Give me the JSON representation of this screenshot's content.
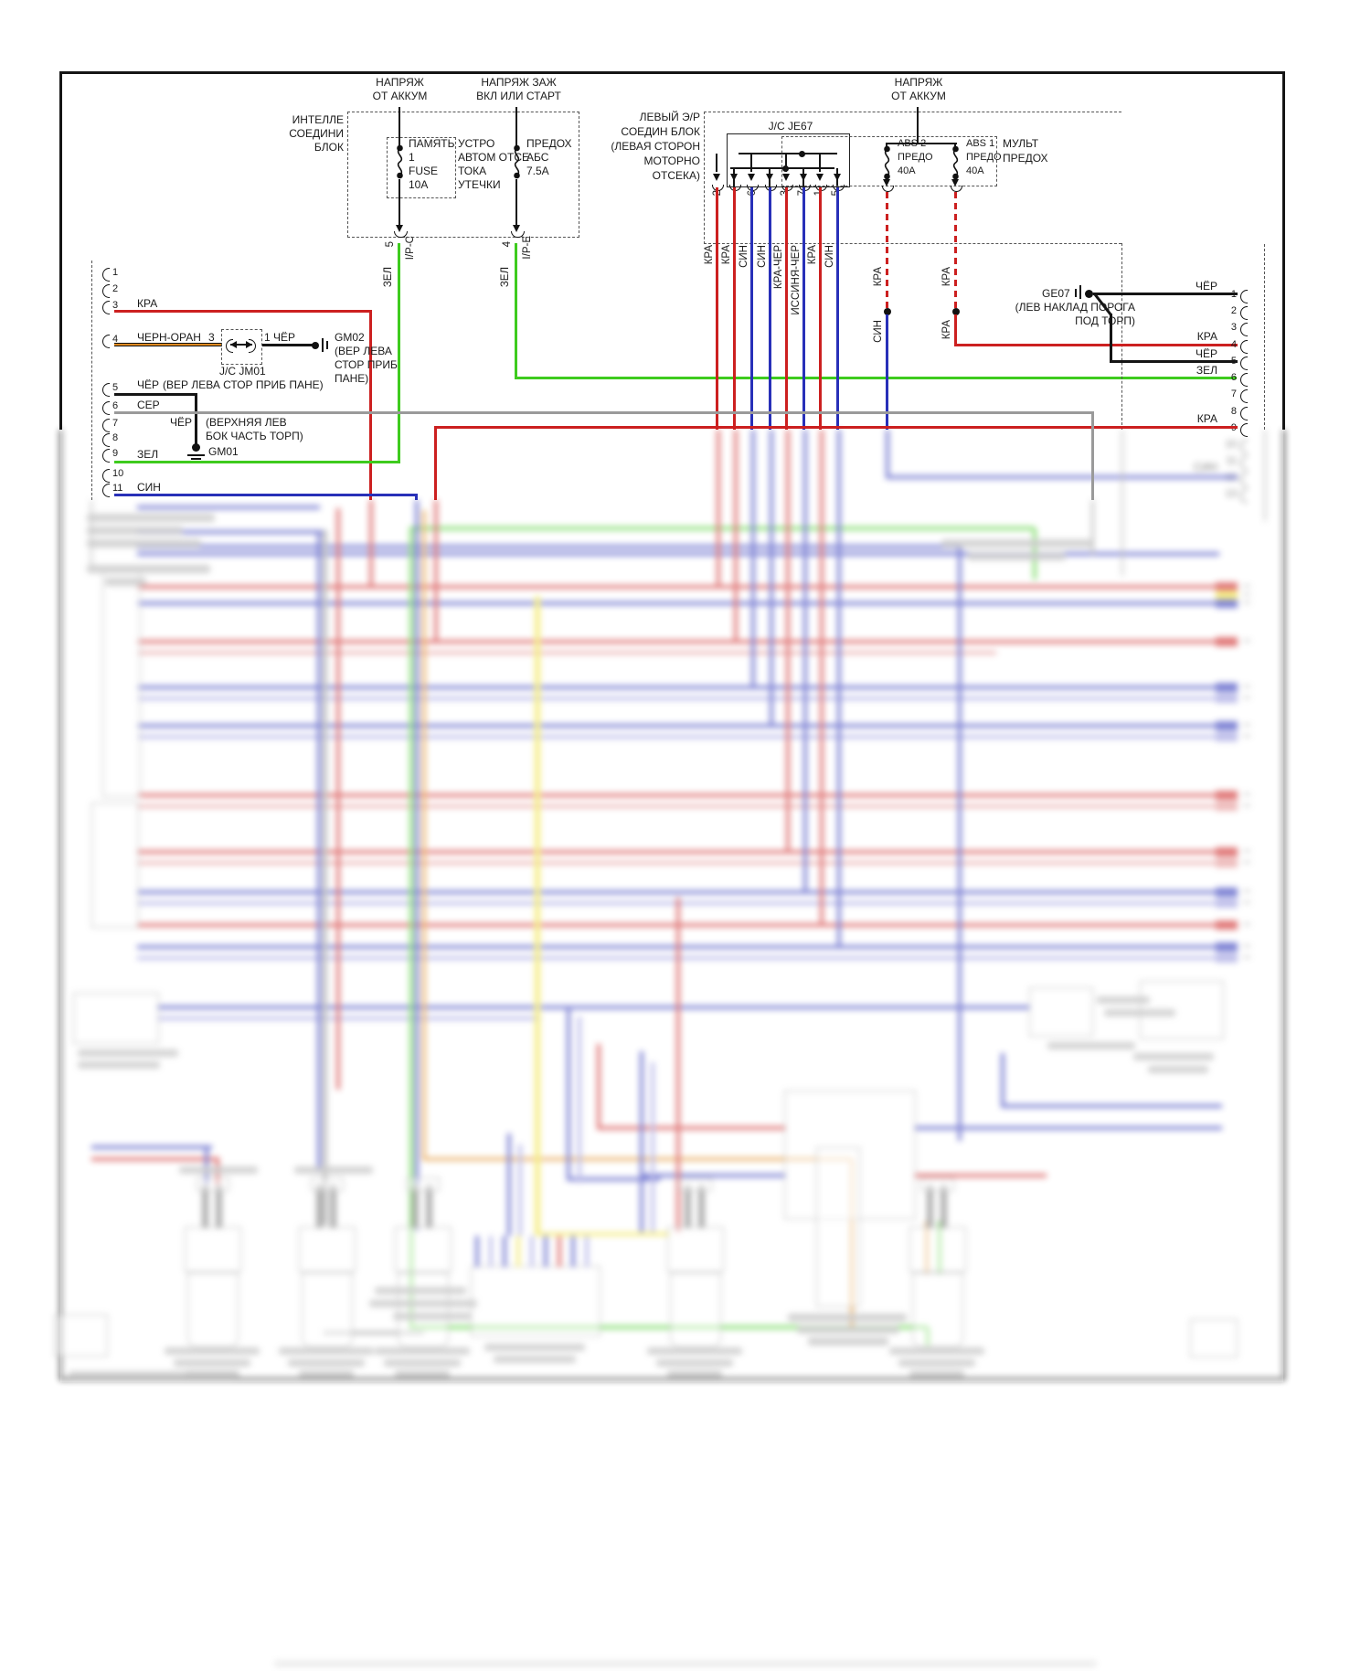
{
  "diagram": {
    "intel_block": {
      "name_lines": [
        "ИНТЕЛЛЕ",
        "СОЕДИНИ",
        "БЛОК"
      ],
      "source_battery": [
        "НАПРЯЖ",
        "ОТ АККУМ"
      ],
      "fuse_memory": [
        "ПАМЯТЬ",
        "1",
        "FUSE",
        "10A"
      ],
      "leak_note": [
        "УСТРО",
        "АВТОМ ОТСЕ",
        "ТОКА",
        "УТЕЧКИ"
      ],
      "source_ignition": [
        "НАПРЯЖ ЗАЖ",
        "ВКЛ ИЛИ СТАРТ"
      ],
      "fuse_abs": [
        "ПРЕДОХ",
        "АБС",
        "7.5A"
      ],
      "out1": {
        "pin": "5",
        "conn": "I/P-C",
        "wire": "ЗЕЛ"
      },
      "out2": {
        "pin": "4",
        "conn": "I/P-E",
        "wire": "ЗЕЛ"
      }
    },
    "engine_jb": {
      "name_lines": [
        "ЛЕВЫЙ Э/Р",
        "СОЕДИН БЛОК",
        "(ЛЕВАЯ СТОРОН",
        "МОТОРНО",
        "ОТСЕКА)"
      ],
      "jc": "J/C JE67",
      "pin_numbers": [
        "2",
        "6",
        "3",
        "7",
        "1",
        "5"
      ],
      "wire_labels": [
        "КРА",
        "КРА",
        "СИН",
        "СИН",
        "КРА-ЧЁР",
        "ИССИНЯ-ЧЁР",
        "КРА",
        "СИН"
      ]
    },
    "mult_fuse": {
      "source_battery": [
        "НАПРЯЖ",
        "ОТ АККУМ"
      ],
      "name_lines": [
        "МУЛЬТ",
        "ПРЕДОХ"
      ],
      "fuse_abs2": [
        "ABS 2",
        "ПРЕДО",
        "40A"
      ],
      "fuse_abs1": [
        "ABS 1",
        "ПРЕДО",
        "40A"
      ],
      "abs2_wire_top": "КРА",
      "abs2_wire_bottom": "СИН",
      "abs1_wire_top": "КРА",
      "abs1_wire_bottom": "КРА"
    },
    "ge07": {
      "name": "GE07",
      "loc_lines": [
        "(ЛЕВ НАКЛАД ПОРОГА",
        "ПОД ТОРП)"
      ]
    },
    "left_connector": {
      "pins": [
        "1",
        "2",
        "3",
        "4",
        "5",
        "6",
        "7",
        "8",
        "9",
        "10",
        "11"
      ],
      "wire3": "КРА",
      "wire4": "ЧЕРН-ОРАН",
      "wire5": "ЧЁР",
      "wire5b": "ЧЁР",
      "wire6": "СЕР",
      "wire9": "ЗЕЛ",
      "wire11": "СИН",
      "jm01": {
        "pin_in": "3",
        "pin_out": "1",
        "wire_out": "ЧЁР",
        "name": "J/C JM01",
        "loc": "(ВЕР ЛЕВА СТОР ПРИБ ПАНЕ)"
      },
      "gm02": {
        "name": "GM02",
        "loc_lines": [
          "(ВЕР ЛЕВА",
          "СТОР ПРИБ",
          "ПАНЕ)"
        ]
      },
      "gm01": {
        "name": "GM01",
        "loc_lines": [
          "(ВЕРХНЯЯ ЛЕВ",
          "БОК ЧАСТЬ ТОРП)"
        ]
      }
    },
    "right_connector": {
      "pins": [
        "1",
        "2",
        "3",
        "4",
        "5",
        "6",
        "7",
        "8",
        "9",
        "10",
        "11",
        "12",
        "13"
      ],
      "wire1": "ЧЁР",
      "wire4": "КРА",
      "wire5": "ЧЁР",
      "wire6": "ЗЕЛ",
      "wire9": "КРА",
      "wire12": "СИН"
    },
    "colors": {
      "red": "#cc2020",
      "blue": "#2830b8",
      "green": "#3ecb1e",
      "gray": "#9a9a9a",
      "orange": "#e08a20",
      "yellow": "#efe23a",
      "black": "#151515",
      "pale_red": "#e28d8d",
      "pale_blue": "#9595dd"
    }
  }
}
